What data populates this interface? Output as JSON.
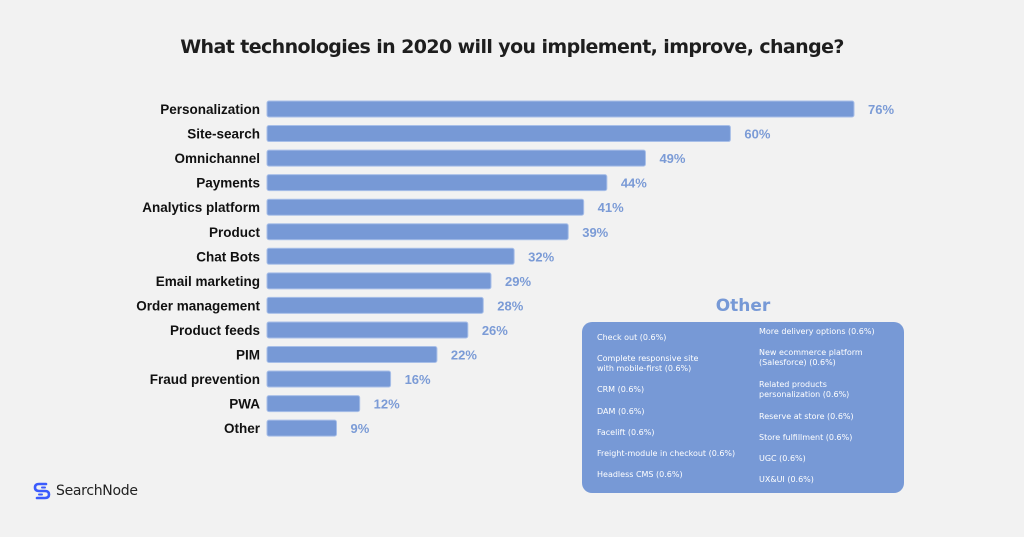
{
  "chart_data": {
    "type": "bar",
    "orientation": "horizontal",
    "title": "What technologies in 2020 will you implement, improve, change?",
    "categories": [
      "Personalization",
      "Site-search",
      "Omnichannel",
      "Payments",
      "Analytics platform",
      "Product",
      "Chat Bots",
      "Email marketing",
      "Order management",
      "Product feeds",
      "PIM",
      "Fraud prevention",
      "PWA",
      "Other"
    ],
    "values": [
      76,
      60,
      49,
      44,
      41,
      39,
      32,
      29,
      28,
      26,
      22,
      16,
      12,
      9
    ],
    "value_labels": [
      "76%",
      "60%",
      "49%",
      "44%",
      "41%",
      "39%",
      "32%",
      "29%",
      "28%",
      "26%",
      "22%",
      "16%",
      "12%",
      "9%"
    ],
    "unit": "%",
    "xlabel": "",
    "ylabel": "",
    "xlim": [
      0,
      76
    ],
    "grid": false,
    "legend": "none",
    "bar_color": "#7799d6",
    "label_color": "#7b9bd6"
  },
  "other_panel": {
    "title": "Other",
    "left_items": [
      "Check out (0.6%)",
      "Complete responsive site\nwith mobile-first (0.6%)",
      "CRM (0.6%)",
      "DAM (0.6%)",
      "Facelift (0.6%)",
      "Freight-module in checkout (0.6%)",
      "Headless CMS (0.6%)"
    ],
    "right_items": [
      "More delivery options (0.6%)",
      "New ecommerce platform\n(Salesforce) (0.6%)",
      "Related products\npersonalization  (0.6%)",
      "Reserve at store (0.6%)",
      "Store fulfillment (0.6%)",
      "UGC (0.6%)",
      "UX&UI (0.6%)"
    ]
  },
  "brand": {
    "name": "SearchNode",
    "icon": "searchnode-logo-icon",
    "color": "#3b5bfd"
  }
}
